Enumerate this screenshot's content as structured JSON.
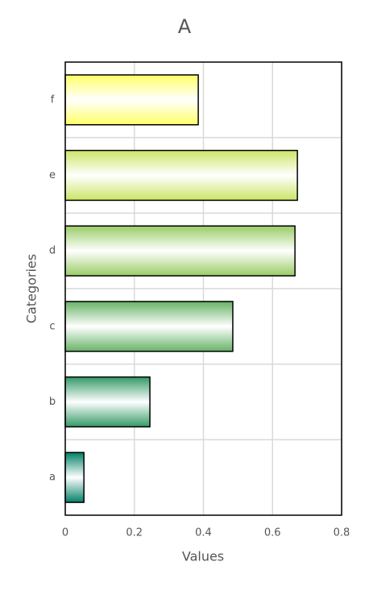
{
  "chart_data": {
    "type": "barh",
    "title": "A",
    "x_label": "Values",
    "y_label": "Categories",
    "categories": [
      "a",
      "b",
      "c",
      "d",
      "e",
      "f"
    ],
    "values": [
      0.054,
      0.245,
      0.485,
      0.665,
      0.672,
      0.385
    ],
    "colors": [
      "#008066",
      "#339966",
      "#66b266",
      "#99cc66",
      "#cce566",
      "#ffff66"
    ],
    "xlim": [
      0,
      0.8
    ],
    "xticks": [
      0,
      0.2,
      0.4,
      0.6,
      0.8
    ],
    "grid": true
  }
}
